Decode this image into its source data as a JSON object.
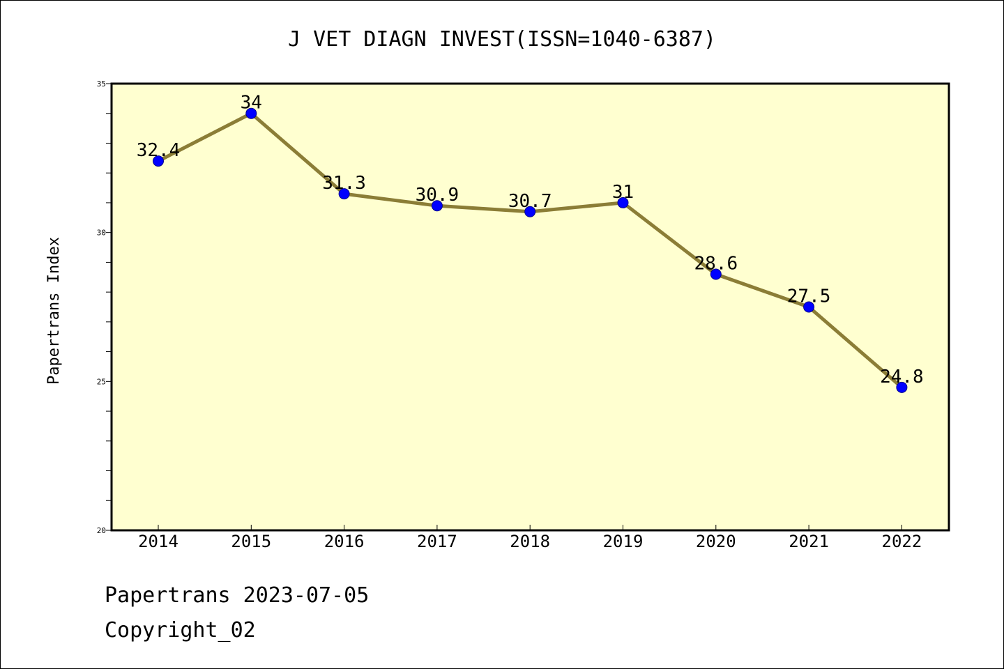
{
  "chart_data": {
    "type": "line",
    "title": "J VET DIAGN INVEST(ISSN=1040-6387)",
    "ylabel": "Papertrans Index",
    "xlabel": "",
    "categories": [
      "2014",
      "2015",
      "2016",
      "2017",
      "2018",
      "2019",
      "2020",
      "2021",
      "2022"
    ],
    "values": [
      32.4,
      34,
      31.3,
      30.9,
      30.7,
      31,
      28.6,
      27.5,
      24.8
    ],
    "value_labels": [
      "32.4",
      "34",
      "31.3",
      "30.9",
      "30.7",
      "31",
      "28.6",
      "27.5",
      "24.8"
    ],
    "ylim": [
      20,
      35
    ],
    "yticks": [
      20,
      25,
      30,
      35
    ],
    "ytick_labels": [
      "20",
      "25",
      "30",
      "35"
    ],
    "grid": false,
    "colors": {
      "plot_background": "#ffffd0",
      "line": "#8b7d36",
      "marker": "#0000ff"
    }
  },
  "footer": {
    "line1": "Papertrans 2023-07-05",
    "line2": "Copyright_02"
  }
}
